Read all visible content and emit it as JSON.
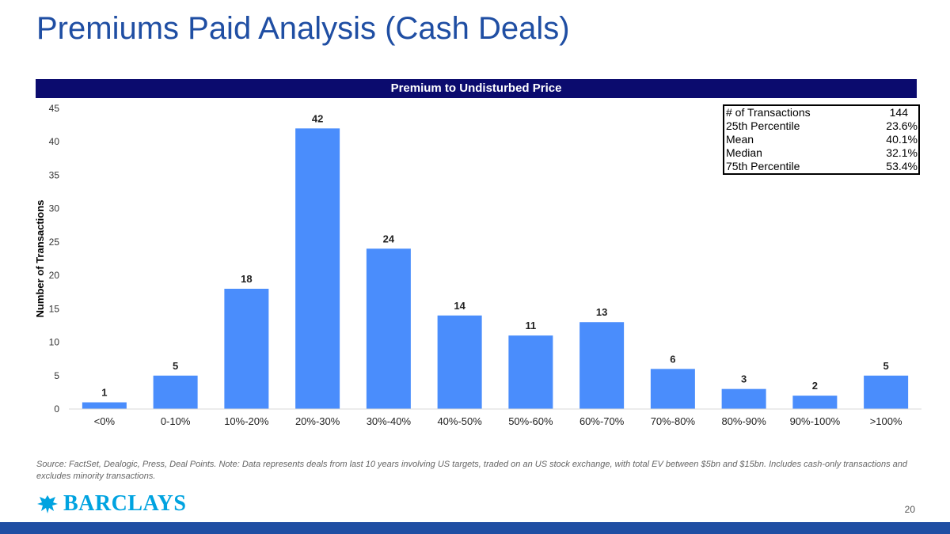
{
  "slide": {
    "title": "Premiums Paid Analysis (Cash Deals)",
    "banner": "Premium to Undisturbed Price",
    "footnote": "Source: FactSet, Dealogic, Press, Deal Points. Note: Data represents deals from last 10 years involving US targets, traded on an US stock exchange, with total EV between $5bn and $15bn. Includes cash-only transactions and excludes minority transactions.",
    "page_number": "20",
    "logo_text": "BARCLAYS",
    "logo_icon": "eagle-icon"
  },
  "colors": {
    "bar": "#4a8dfc",
    "title": "#1f4ea3",
    "banner": "#0b0b6e",
    "logo": "#00a3e0"
  },
  "stats": [
    {
      "label": "# of Transactions",
      "value": "144"
    },
    {
      "label": "25th Percentile",
      "value": "23.6%"
    },
    {
      "label": "Mean",
      "value": "40.1%"
    },
    {
      "label": "Median",
      "value": "32.1%"
    },
    {
      "label": "75th Percentile",
      "value": "53.4%"
    }
  ],
  "chart_data": {
    "type": "bar",
    "categories": [
      "<0%",
      "0-10%",
      "10%-20%",
      "20%-30%",
      "30%-40%",
      "40%-50%",
      "50%-60%",
      "60%-70%",
      "70%-80%",
      "80%-90%",
      "90%-100%",
      ">100%"
    ],
    "values": [
      1,
      5,
      18,
      42,
      24,
      14,
      11,
      13,
      6,
      3,
      2,
      5
    ],
    "data_labels": [
      "1",
      "5",
      "18",
      "42",
      "24",
      "14",
      "11",
      "13",
      "6",
      "3",
      "2",
      "5"
    ],
    "title": "Premium to Undisturbed Price",
    "xlabel": "",
    "ylabel": "Number of Transactions",
    "ylim": [
      0,
      45
    ],
    "yticks": [
      "0",
      "5",
      "10",
      "15",
      "20",
      "25",
      "30",
      "35",
      "40",
      "45"
    ],
    "grid": false,
    "legend": "none"
  }
}
